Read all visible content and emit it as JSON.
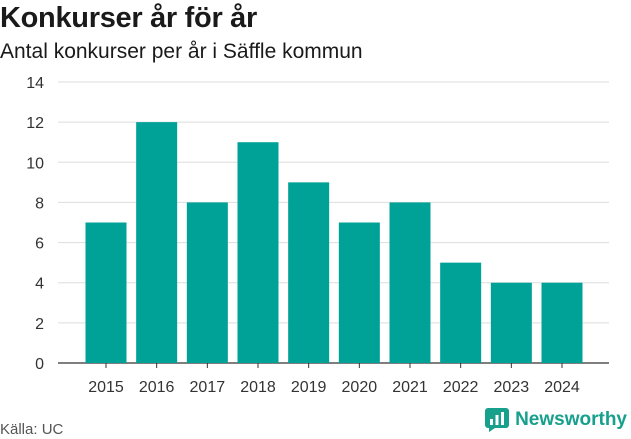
{
  "chart_data": {
    "type": "bar",
    "title": "Konkurser år för år",
    "subtitle": "Antal konkurser per år i Säffle kommun",
    "categories": [
      "2015",
      "2016",
      "2017",
      "2018",
      "2019",
      "2020",
      "2021",
      "2022",
      "2023",
      "2024"
    ],
    "values": [
      7,
      12,
      8,
      11,
      9,
      7,
      8,
      5,
      4,
      4
    ],
    "ylim": [
      0,
      14
    ],
    "yticks": [
      0,
      2,
      4,
      6,
      8,
      10,
      12,
      14
    ],
    "xlabel": "",
    "ylabel": "",
    "grid": true,
    "bar_color": "#00a197",
    "source": "Källa: UC"
  },
  "brand": {
    "name": "Newsworthy",
    "icon": "newsworthy-logo-icon",
    "color": "#17a08c"
  }
}
